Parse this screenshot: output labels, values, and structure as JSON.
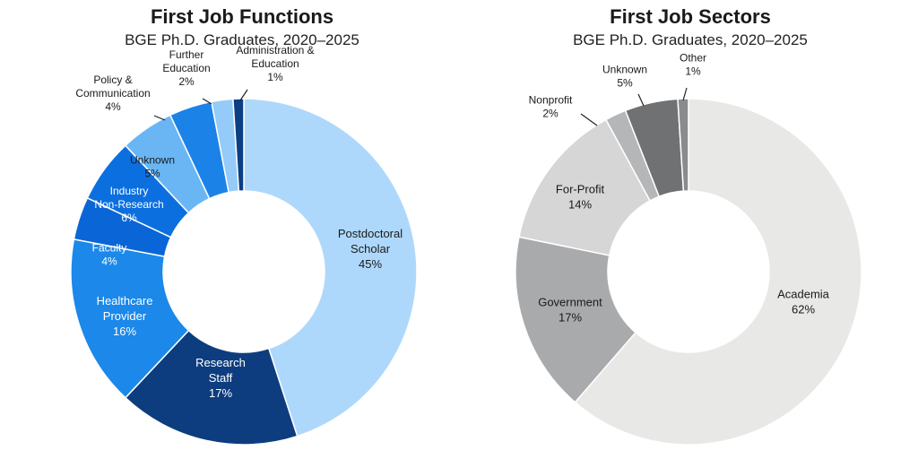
{
  "chart_data": [
    {
      "type": "pie",
      "donut": true,
      "title": "First Job Functions",
      "subtitle": "BGE Ph.D. Graduates, 2020–2025",
      "slices": [
        {
          "label": [
            "Postdoctoral",
            "Scholar"
          ],
          "pct_label": "45%",
          "value": 45,
          "color": "#aed8fb",
          "text_color": "#1a1a1a"
        },
        {
          "label": [
            "Research",
            "Staff"
          ],
          "pct_label": "17%",
          "value": 17,
          "color": "#0d3d7e",
          "text_color": "#ffffff"
        },
        {
          "label": [
            "Healthcare",
            "Provider"
          ],
          "pct_label": "16%",
          "value": 16,
          "color": "#1b88ea",
          "text_color": "#ffffff"
        },
        {
          "label": [
            "Faculty"
          ],
          "pct_label": "4%",
          "value": 4,
          "color": "#0a66d6",
          "text_color": "#ffffff"
        },
        {
          "label": [
            "Industry",
            "Non-Research"
          ],
          "pct_label": "6%",
          "value": 6,
          "color": "#0c6fe0",
          "text_color": "#ffffff"
        },
        {
          "label": [
            "Unknown"
          ],
          "pct_label": "5%",
          "value": 5,
          "color": "#6ab6f5",
          "text_color": "#1a1a1a"
        },
        {
          "label": [
            "Policy &",
            "Communication"
          ],
          "pct_label": "4%",
          "value": 4,
          "color": "#1b82e8",
          "text_color": "#1a1a1a",
          "outside": true
        },
        {
          "label": [
            "Further",
            "Education"
          ],
          "pct_label": "2%",
          "value": 2,
          "color": "#94cbf8",
          "text_color": "#1a1a1a",
          "outside": true
        },
        {
          "label": [
            "Administration &",
            "Education"
          ],
          "pct_label": "1%",
          "value": 1,
          "color": "#0b3f86",
          "text_color": "#1a1a1a",
          "outside": true
        }
      ]
    },
    {
      "type": "pie",
      "donut": true,
      "title": "First Job Sectors",
      "subtitle": "BGE Ph.D. Graduates, 2020–2025",
      "slices": [
        {
          "label": [
            "Academia"
          ],
          "pct_label": "62%",
          "value": 62,
          "color": "#e8e8e6",
          "text_color": "#1a1a1a"
        },
        {
          "label": [
            "Government"
          ],
          "pct_label": "17%",
          "value": 17,
          "color": "#a9aaac",
          "text_color": "#1a1a1a"
        },
        {
          "label": [
            "For-Profit"
          ],
          "pct_label": "14%",
          "value": 14,
          "color": "#d6d6d7",
          "text_color": "#1a1a1a"
        },
        {
          "label": [
            "Nonprofit"
          ],
          "pct_label": "2%",
          "value": 2,
          "color": "#b5b6b8",
          "text_color": "#1a1a1a",
          "outside": true
        },
        {
          "label": [
            "Unknown"
          ],
          "pct_label": "5%",
          "value": 5,
          "color": "#707172",
          "text_color": "#1a1a1a",
          "outside": true
        },
        {
          "label": [
            "Other"
          ],
          "pct_label": "1%",
          "value": 1,
          "color": "#8a8b8d",
          "text_color": "#1a1a1a",
          "outside": true
        }
      ]
    }
  ]
}
